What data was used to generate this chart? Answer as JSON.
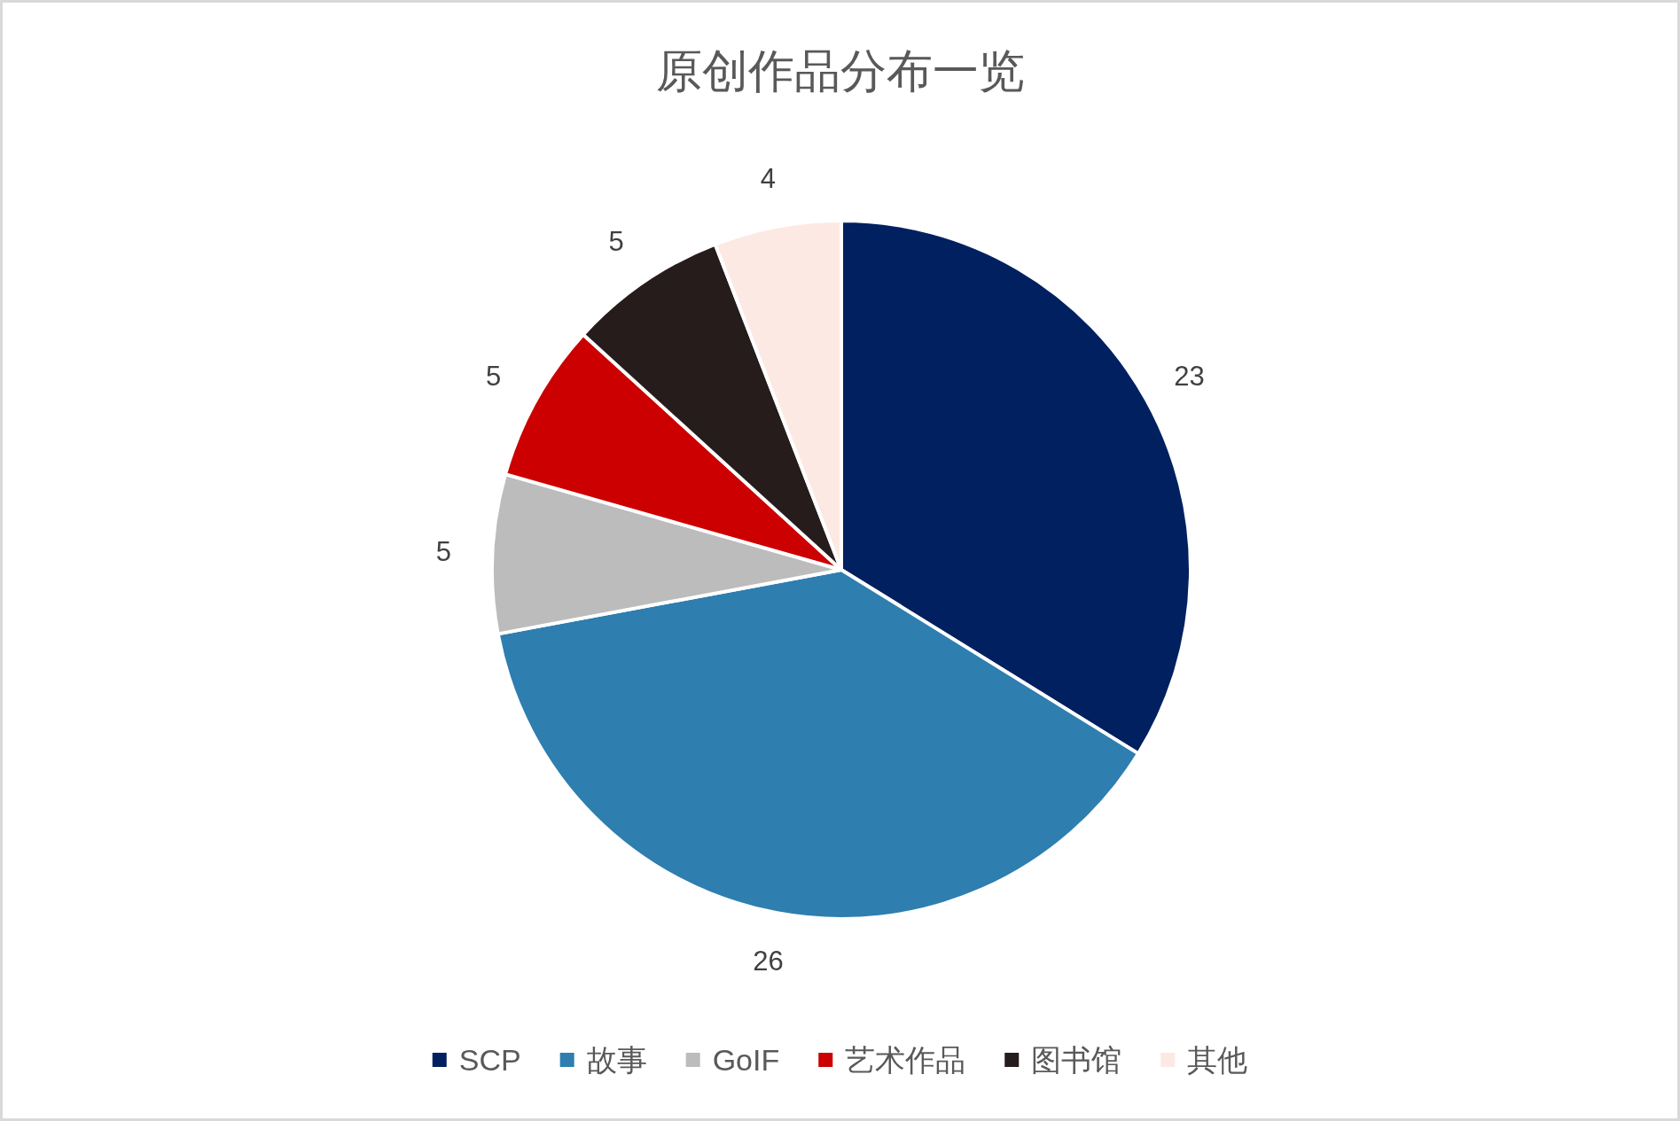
{
  "chart_data": {
    "type": "pie",
    "title": "原创作品分布一览",
    "categories": [
      "SCP",
      "故事",
      "GoIF",
      "艺术作品",
      "图书馆",
      "其他"
    ],
    "values": [
      23,
      26,
      5,
      5,
      5,
      4
    ],
    "colors": [
      "#002060",
      "#2e7eaf",
      "#bbbcbb",
      "#cc0000",
      "#261c1b",
      "#fde9e3"
    ],
    "data_labels": true,
    "legend": "bottom"
  }
}
